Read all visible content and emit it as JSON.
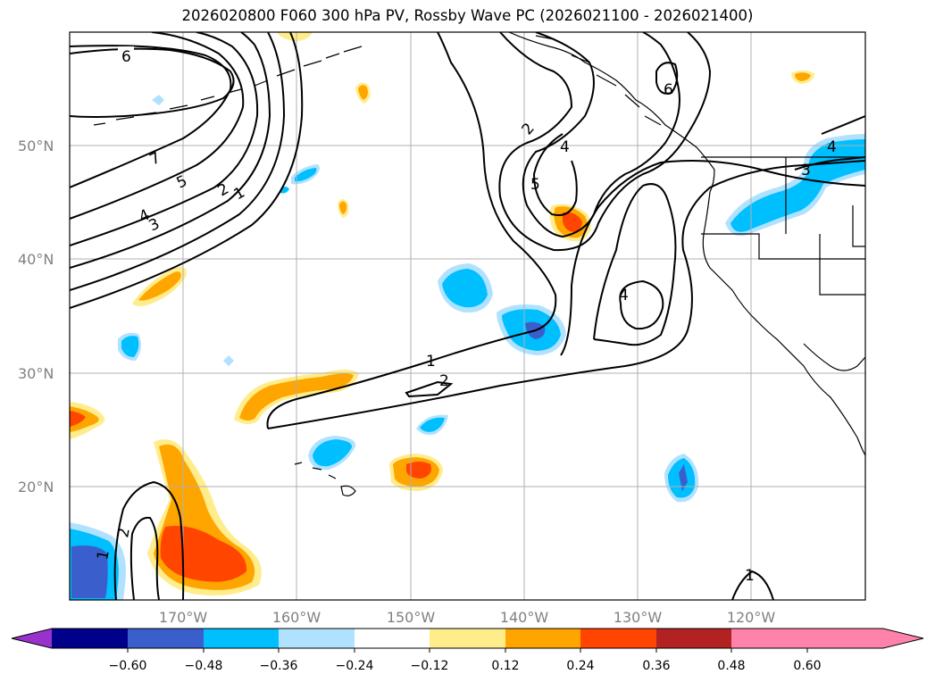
{
  "map": {
    "title": "2026020800 F060 300 hPa PV, Rossby Wave PC (2026021100 - 2026021400)",
    "lat_labels": [
      "50°N",
      "40°N",
      "30°N",
      "20°N"
    ],
    "lon_labels": [
      "170°W",
      "160°W",
      "150°W",
      "140°W",
      "130°W",
      "120°W"
    ],
    "contour_labels": [
      "6",
      "7",
      "5",
      "4",
      "3",
      "2",
      "1",
      "2",
      "5",
      "4",
      "6",
      "4",
      "1",
      "2",
      "2",
      "1",
      "1",
      "3",
      "4"
    ]
  },
  "colorbar": {
    "tick_labels": [
      "−0.60",
      "−0.48",
      "−0.36",
      "−0.24",
      "−0.12",
      "0.12",
      "0.24",
      "0.36",
      "0.48",
      "0.60"
    ],
    "colors": [
      "#9932CC",
      "#00008B",
      "#3A5FCD",
      "#00BFFF",
      "#B0E2FF",
      "#FFFFFF",
      "#FFEC8B",
      "#FFA500",
      "#FF4500",
      "#B22222",
      "#FF82AB"
    ]
  }
}
